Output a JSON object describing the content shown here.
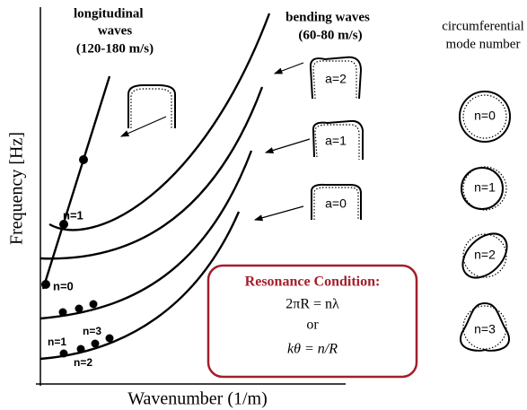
{
  "labels": {
    "longitudinal": [
      "longitudinal",
      "waves",
      "(120-180 m/s)"
    ],
    "bending": [
      "bending waves",
      "(60-80 m/s)"
    ],
    "circumferential": [
      "circumferential",
      "mode number"
    ]
  },
  "axes": {
    "y": "Frequency [Hz]",
    "x": "Wavenumber (1/m)"
  },
  "curve_labels": [
    "n=1",
    "n=0",
    "n=1",
    "n=3",
    "n=2"
  ],
  "shapes": [
    "a=2",
    "a=1",
    "a=0"
  ],
  "modes": [
    "n=0",
    "n=1",
    "n=2",
    "n=3"
  ],
  "resonance": {
    "title": "Resonance Condition:",
    "lines": [
      "2πR = nλ",
      "or",
      "kθ = n/R"
    ]
  }
}
